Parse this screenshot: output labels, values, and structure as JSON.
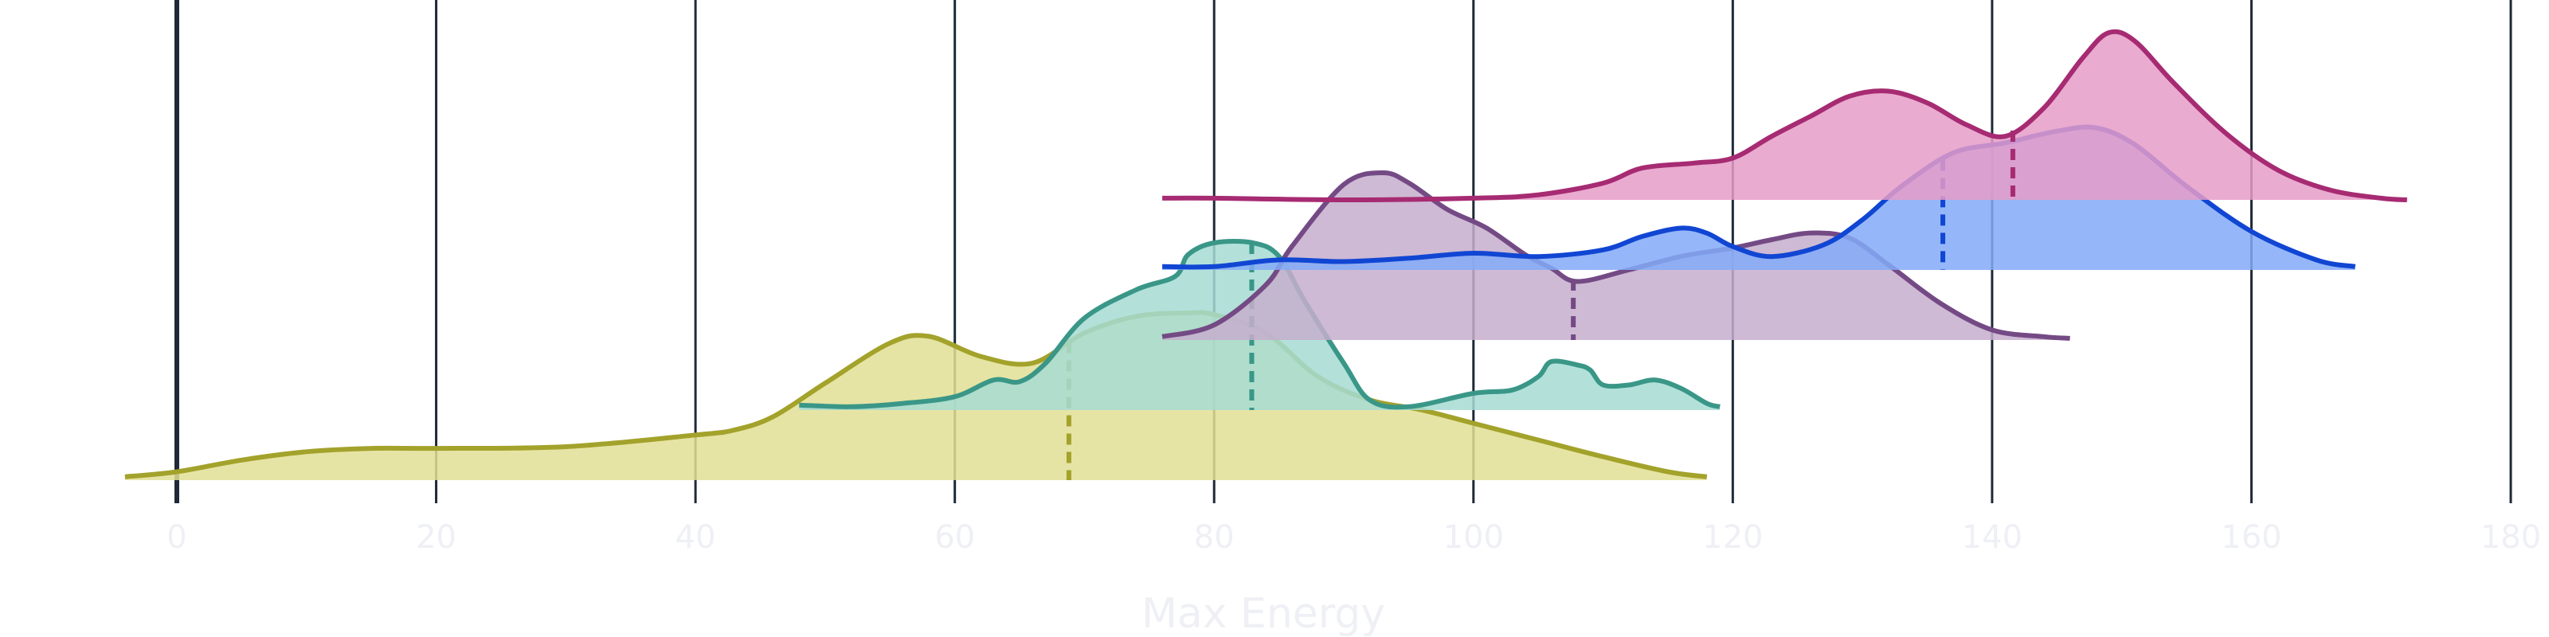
{
  "chart_data": {
    "type": "ridgeline",
    "xlabel": "Max Energy",
    "xlim": [
      0,
      180
    ],
    "xticks": [
      "0",
      "20",
      "40",
      "60",
      "80",
      "100",
      "120",
      "140",
      "160",
      "180"
    ],
    "grid": "vertical",
    "legend": "none",
    "series": [
      {
        "color": "#A3A22B",
        "fill": "#E2DF94",
        "median": 68.8,
        "x": [
          -4,
          0,
          5,
          10,
          15,
          20,
          30,
          40,
          43,
          46,
          50,
          55,
          58,
          62,
          66,
          70,
          74,
          78,
          80,
          84,
          88,
          92,
          96,
          100,
          105,
          110,
          115,
          118
        ],
        "density": [
          0.02,
          0.05,
          0.12,
          0.17,
          0.19,
          0.19,
          0.2,
          0.27,
          0.3,
          0.38,
          0.58,
          0.82,
          0.86,
          0.74,
          0.7,
          0.88,
          0.98,
          1.0,
          0.99,
          0.88,
          0.62,
          0.48,
          0.42,
          0.34,
          0.24,
          0.14,
          0.05,
          0.02
        ]
      },
      {
        "color": "#3A9788",
        "fill": "#A6DCD3",
        "median": 82.9,
        "x": [
          48,
          52,
          56,
          60,
          63,
          65,
          67,
          70,
          74,
          77,
          78,
          80,
          83,
          85,
          87,
          90,
          92,
          95,
          100,
          103,
          105,
          106,
          108,
          109,
          110,
          112,
          114,
          116,
          118,
          119
        ],
        "density": [
          0.03,
          0.02,
          0.04,
          0.08,
          0.18,
          0.17,
          0.28,
          0.55,
          0.72,
          0.8,
          0.93,
          1.0,
          1.0,
          0.92,
          0.65,
          0.28,
          0.06,
          0.02,
          0.1,
          0.12,
          0.2,
          0.29,
          0.27,
          0.24,
          0.15,
          0.15,
          0.18,
          0.13,
          0.04,
          0.02
        ]
      },
      {
        "color": "#744A85",
        "fill": "#C5AECC",
        "median": 107.7,
        "x": [
          76,
          80,
          84,
          86,
          90,
          93,
          95,
          98,
          101,
          104,
          106,
          108,
          112,
          116,
          120,
          123,
          126,
          129,
          132,
          136,
          140,
          144,
          146
        ],
        "density": [
          0.02,
          0.09,
          0.33,
          0.56,
          0.93,
          1.0,
          0.94,
          0.78,
          0.67,
          0.51,
          0.43,
          0.35,
          0.42,
          0.5,
          0.55,
          0.6,
          0.64,
          0.61,
          0.45,
          0.22,
          0.06,
          0.02,
          0.01
        ]
      },
      {
        "color": "#1146D3",
        "fill": "#83AAF8",
        "median": 136.2,
        "x": [
          76,
          80,
          85,
          90,
          95,
          100,
          105,
          110,
          113,
          116,
          118,
          120,
          123,
          127,
          130,
          133,
          137,
          141,
          145,
          148,
          151,
          155,
          160,
          165,
          168
        ],
        "density": [
          0.02,
          0.02,
          0.06,
          0.05,
          0.07,
          0.1,
          0.08,
          0.12,
          0.2,
          0.25,
          0.22,
          0.14,
          0.08,
          0.15,
          0.3,
          0.5,
          0.7,
          0.76,
          0.83,
          0.85,
          0.75,
          0.5,
          0.23,
          0.06,
          0.02
        ]
      },
      {
        "color": "#A62B72",
        "fill": "#E69CC8",
        "median": 141.6,
        "x": [
          76,
          80,
          90,
          100,
          105,
          110,
          113,
          117,
          120,
          123,
          126,
          129,
          132,
          135,
          138,
          141,
          144,
          147,
          149,
          151,
          154,
          158,
          162,
          166,
          170,
          172
        ],
        "density": [
          0.01,
          0.01,
          0.0,
          0.01,
          0.03,
          0.1,
          0.19,
          0.22,
          0.25,
          0.38,
          0.5,
          0.62,
          0.65,
          0.58,
          0.45,
          0.38,
          0.55,
          0.85,
          1.0,
          0.95,
          0.7,
          0.4,
          0.18,
          0.06,
          0.01,
          0.0
        ]
      }
    ]
  }
}
